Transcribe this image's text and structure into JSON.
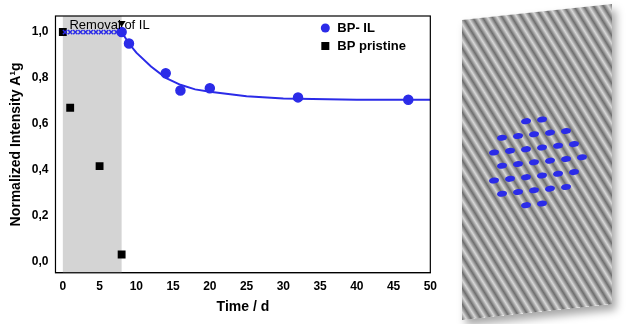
{
  "chart_data": {
    "type": "scatter",
    "x_label": "Time / d",
    "y_label": "Normalized Intensity A¹g",
    "xlim": [
      -1,
      50
    ],
    "xticks": [
      0,
      5,
      10,
      15,
      20,
      25,
      30,
      35,
      40,
      45,
      50
    ],
    "ylim": [
      -0.05,
      1.07
    ],
    "yticks": [
      {
        "value": 0,
        "label": "0,0"
      },
      {
        "value": 0.2,
        "label": "0,2"
      },
      {
        "value": 0.4,
        "label": "0,4"
      },
      {
        "value": 0.6,
        "label": "0,6"
      },
      {
        "value": 0.8,
        "label": "0,8"
      },
      {
        "value": 1.0,
        "label": "1,0"
      }
    ],
    "grid": false,
    "legend": "upper right",
    "annotations": [
      {
        "text": "Removal of IL",
        "x": 8,
        "y": 1.0,
        "shade": [
          0,
          8
        ]
      }
    ],
    "series": [
      {
        "name": "BP- IL",
        "color": "#2b2be8",
        "marker": "circle",
        "x": [
          8,
          9,
          14,
          16,
          20,
          32,
          47
        ],
        "values": [
          1.0,
          0.95,
          0.82,
          0.745,
          0.755,
          0.715,
          0.705
        ]
      },
      {
        "color": "#2b2be8",
        "marker": "cross",
        "x": [
          0.3,
          1,
          1.7,
          2.4,
          3.1,
          3.8,
          4.5,
          5.2,
          5.9,
          6.6,
          7.3
        ],
        "values": [
          1.0,
          1.0,
          1.0,
          1.0,
          1.0,
          1.0,
          1.0,
          1.0,
          1.0,
          1.0,
          1.0
        ]
      },
      {
        "color": "#2b2be8",
        "type": "line",
        "marker": "none",
        "x": [
          8,
          9,
          10,
          12,
          14,
          16,
          18,
          20,
          25,
          30,
          40,
          50
        ],
        "values": [
          1.0,
          0.95,
          0.91,
          0.85,
          0.8,
          0.77,
          0.75,
          0.74,
          0.72,
          0.71,
          0.705,
          0.705
        ]
      },
      {
        "name": "BP pristine",
        "color": "#000000",
        "marker": "square",
        "x": [
          0,
          1,
          5,
          8
        ],
        "values": [
          1.0,
          0.67,
          0.415,
          0.03
        ]
      }
    ]
  }
}
